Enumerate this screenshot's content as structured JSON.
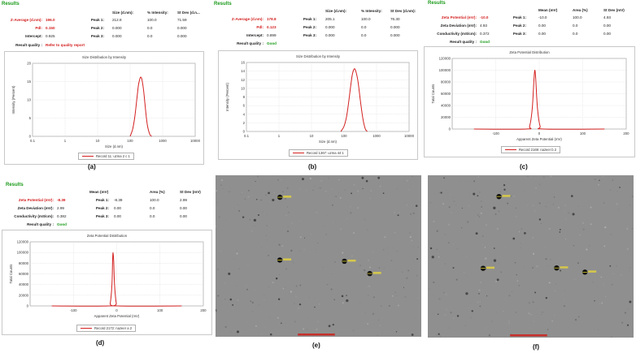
{
  "panels": [
    {
      "id": "a",
      "label": "(a)",
      "results_title": "Results",
      "headers": [
        "Size (d.nm):",
        "% Intensity:",
        "St Dev (d.n..."
      ],
      "left_rows": [
        {
          "label": "Z-Average (d.nm):",
          "value": "196.0",
          "style": "red"
        },
        {
          "label": "Pdl:",
          "value": "0.150",
          "style": "red"
        },
        {
          "label": "Intercept:",
          "value": "0.925",
          "style": "plain"
        }
      ],
      "peaks": [
        {
          "label": "Peak 1:",
          "values": [
            "212.8",
            "100.0",
            "71.59"
          ]
        },
        {
          "label": "Peak 2:",
          "values": [
            "0.000",
            "0.0",
            "0.000"
          ]
        },
        {
          "label": "Peak 3:",
          "values": [
            "0.000",
            "0.0",
            "0.000"
          ]
        }
      ],
      "quality_label": "Result quality :",
      "quality_value": "Refer to quality report",
      "quality_style": "red"
    },
    {
      "id": "b",
      "label": "(b)",
      "results_title": "Results",
      "headers": [
        "Size (d.nm):",
        "% Intensity:",
        "St Dev (d.nm):"
      ],
      "left_rows": [
        {
          "label": "Z-Average (d.nm):",
          "value": "178.8",
          "style": "red"
        },
        {
          "label": "Pdl:",
          "value": "0.123",
          "style": "red"
        },
        {
          "label": "Intercept:",
          "value": "0.899",
          "style": "plain"
        }
      ],
      "peaks": [
        {
          "label": "Peak 1:",
          "values": [
            "205.1",
            "100.0",
            "76.30"
          ]
        },
        {
          "label": "Peak 2:",
          "values": [
            "0.000",
            "0.0",
            "0.000"
          ]
        },
        {
          "label": "Peak 3:",
          "values": [
            "0.000",
            "0.0",
            "0.000"
          ]
        }
      ],
      "quality_label": "Result quality :",
      "quality_value": "Good",
      "quality_style": "green"
    },
    {
      "id": "c",
      "label": "(c)",
      "results_title": "Results",
      "headers": [
        "Mean (mV)",
        "Area (%)",
        "St Dev (mV)"
      ],
      "left_rows": [
        {
          "label": "Zeta Potential (mV):",
          "value": "-10.0",
          "style": "red"
        },
        {
          "label": "Zeta Deviation (mV):",
          "value": "4.93",
          "style": "plain"
        },
        {
          "label": "Conductivity (mS/cm):",
          "value": "0.372",
          "style": "plain"
        }
      ],
      "peaks": [
        {
          "label": "Peak 1:",
          "values": [
            "-10.0",
            "100.0",
            "4.93"
          ]
        },
        {
          "label": "Peak 2:",
          "values": [
            "0.00",
            "0.0",
            "0.00"
          ]
        },
        {
          "label": "Peak 3:",
          "values": [
            "0.00",
            "0.0",
            "0.00"
          ]
        }
      ],
      "quality_label": "Result quality :",
      "quality_value": "Good",
      "quality_style": "green"
    },
    {
      "id": "d",
      "label": "(d)",
      "results_title": "Results",
      "headers": [
        "Mean (mV)",
        "Area (%)",
        "St Dev (mV)"
      ],
      "left_rows": [
        {
          "label": "Zeta Potential (mV):",
          "value": "-8.39",
          "style": "red"
        },
        {
          "label": "Zeta Deviation (mV):",
          "value": "2.99",
          "style": "plain"
        },
        {
          "label": "Conductivity (mS/cm):",
          "value": "0.382",
          "style": "plain"
        }
      ],
      "peaks": [
        {
          "label": "Peak 1:",
          "values": [
            "-8.39",
            "100.0",
            "2.99"
          ]
        },
        {
          "label": "Peak 2:",
          "values": [
            "0.00",
            "0.0",
            "0.00"
          ]
        },
        {
          "label": "Peak 3:",
          "values": [
            "0.00",
            "0.0",
            "0.00"
          ]
        }
      ],
      "quality_label": "Result quality :",
      "quality_value": "Good",
      "quality_style": "green"
    },
    {
      "id": "e",
      "label": "(e)"
    },
    {
      "id": "f",
      "label": "(f)"
    }
  ],
  "chart_data": [
    {
      "panel": "a",
      "type": "line",
      "title": "Size Distribution by Intensity",
      "xlabel": "Size (d.nm)",
      "ylabel": "Intensity (Percent)",
      "x_scale": "log",
      "xlim": [
        0.1,
        10000
      ],
      "ylim": [
        0,
        20
      ],
      "x_ticks": [
        0.1,
        1,
        10,
        100,
        1000,
        10000
      ],
      "x_tick_labels": [
        "0.1",
        "1",
        "10",
        "100",
        "1000",
        "10000"
      ],
      "y_ticks": [
        0,
        5,
        10,
        15,
        20
      ],
      "grid": true,
      "legend_position": "bottom-center",
      "series": [
        {
          "name": "Record 11: uzma 2 c 1",
          "color": "#d42020",
          "x": [
            100,
            120,
            140,
            160,
            180,
            200,
            212.8,
            230,
            260,
            300,
            340,
            400,
            460
          ],
          "y": [
            0,
            2,
            5.5,
            10,
            14,
            15.8,
            16.2,
            15.6,
            12.5,
            7,
            3,
            0.6,
            0
          ]
        }
      ]
    },
    {
      "panel": "b",
      "type": "line",
      "title": "Size Distribution by Intensity",
      "xlabel": "Size (d.nm)",
      "ylabel": "Intensity (Percent)",
      "x_scale": "log",
      "xlim": [
        0.1,
        10000
      ],
      "ylim": [
        0,
        16
      ],
      "x_ticks": [
        0.1,
        1,
        10,
        100,
        1000,
        10000
      ],
      "x_tick_labels": [
        "0.1",
        "1",
        "10",
        "100",
        "1000",
        "10000"
      ],
      "y_ticks": [
        0,
        2,
        4,
        6,
        8,
        10,
        12,
        14,
        16
      ],
      "grid": true,
      "legend_position": "bottom-center",
      "series": [
        {
          "name": "Record 1367: uzma 44 1",
          "color": "#d42020",
          "x": [
            80,
            100,
            120,
            140,
            160,
            180,
            205.1,
            230,
            270,
            320,
            380,
            450,
            520
          ],
          "y": [
            0,
            1.2,
            3.5,
            7,
            10.5,
            13.2,
            14.5,
            14,
            11.5,
            7,
            3,
            0.6,
            0
          ]
        }
      ]
    },
    {
      "panel": "c",
      "type": "line",
      "title": "Zeta Potential Distribution",
      "xlabel": "Apparent Zeta Potential (mV)",
      "ylabel": "Total Counts",
      "xlim": [
        -200,
        200
      ],
      "ylim": [
        0,
        120000
      ],
      "x_ticks": [
        -100,
        0,
        100,
        200
      ],
      "x_tick_labels": [
        "-100",
        "0",
        "100",
        "200"
      ],
      "y_ticks": [
        0,
        20000,
        40000,
        60000,
        80000,
        100000,
        120000
      ],
      "grid": true,
      "legend_position": "bottom-center",
      "series": [
        {
          "name": "Record 2169: nazeer b 2",
          "color": "#d42020",
          "x": [
            -150,
            -30,
            -22,
            -16,
            -12,
            -10,
            -8,
            -4,
            2,
            10,
            150
          ],
          "y": [
            0,
            0,
            5000,
            35000,
            85000,
            100000,
            85000,
            35000,
            5000,
            0,
            0
          ]
        }
      ]
    },
    {
      "panel": "d",
      "type": "line",
      "title": "Zeta Potential Distribution",
      "xlabel": "Apparent Zeta Potential (mV)",
      "ylabel": "Total Counts",
      "xlim": [
        -200,
        200
      ],
      "ylim": [
        0,
        120000
      ],
      "x_ticks": [
        -100,
        0,
        100,
        200
      ],
      "x_tick_labels": [
        "-100",
        "0",
        "100",
        "200"
      ],
      "y_ticks": [
        0,
        20000,
        40000,
        60000,
        80000,
        100000,
        120000
      ],
      "grid": true,
      "legend_position": "bottom-center",
      "series": [
        {
          "name": "Record 2172: nazeer a 2",
          "color": "#d42020",
          "x": [
            -150,
            -20,
            -15,
            -11,
            -9.5,
            -8.39,
            -7,
            -5,
            -1,
            4,
            150
          ],
          "y": [
            0,
            0,
            5000,
            40000,
            85000,
            100000,
            85000,
            40000,
            5000,
            0,
            0
          ]
        }
      ]
    }
  ]
}
